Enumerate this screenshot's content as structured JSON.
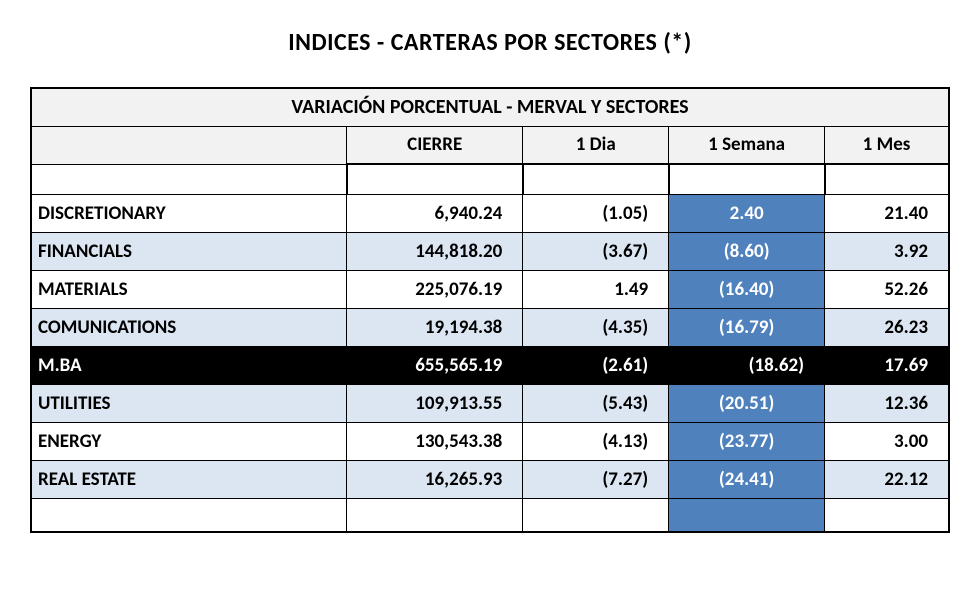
{
  "title": "INDICES - CARTERAS POR SECTORES (*)",
  "table_header": "VARIACIÓN PORCENTUAL - MERVAL Y SECTORES",
  "columns": {
    "label": "",
    "cierre": "CIERRE",
    "dia": "1 Dia",
    "semana": "1 Semana",
    "mes": "1 Mes"
  },
  "rows": [
    {
      "label": "DISCRETIONARY",
      "cierre": "6,940.24",
      "dia": "(1.05)",
      "semana": "2.40",
      "mes": "21.40",
      "alt": false,
      "semana_blue_center": true
    },
    {
      "label": "FINANCIALS",
      "cierre": "144,818.20",
      "dia": "(3.67)",
      "semana": "(8.60)",
      "mes": "3.92",
      "alt": true
    },
    {
      "label": "MATERIALS",
      "cierre": "225,076.19",
      "dia": "1.49",
      "semana": "(16.40)",
      "mes": "52.26",
      "alt": false
    },
    {
      "label": "COMUNICATIONS",
      "cierre": "19,194.38",
      "dia": "(4.35)",
      "semana": "(16.79)",
      "mes": "26.23",
      "alt": true
    },
    {
      "label": "M.BA",
      "cierre": "655,565.19",
      "dia": "(2.61)",
      "semana": "(18.62)",
      "mes": "17.69",
      "highlight": true
    },
    {
      "label": "UTILITIES",
      "cierre": "109,913.55",
      "dia": "(5.43)",
      "semana": "(20.51)",
      "mes": "12.36",
      "alt": true
    },
    {
      "label": "ENERGY",
      "cierre": "130,543.38",
      "dia": "(4.13)",
      "semana": "(23.77)",
      "mes": "3.00",
      "alt": false
    },
    {
      "label": "REAL ESTATE",
      "cierre": "16,265.93",
      "dia": "(7.27)",
      "semana": "(24.41)",
      "mes": "22.12",
      "alt": true
    }
  ],
  "colors": {
    "header_bg": "#f2f2f2",
    "alt_bg": "#dce6f2",
    "blue_bg": "#4f81bd",
    "highlight_bg": "#000000",
    "text": "#000000",
    "text_inverse": "#ffffff"
  }
}
